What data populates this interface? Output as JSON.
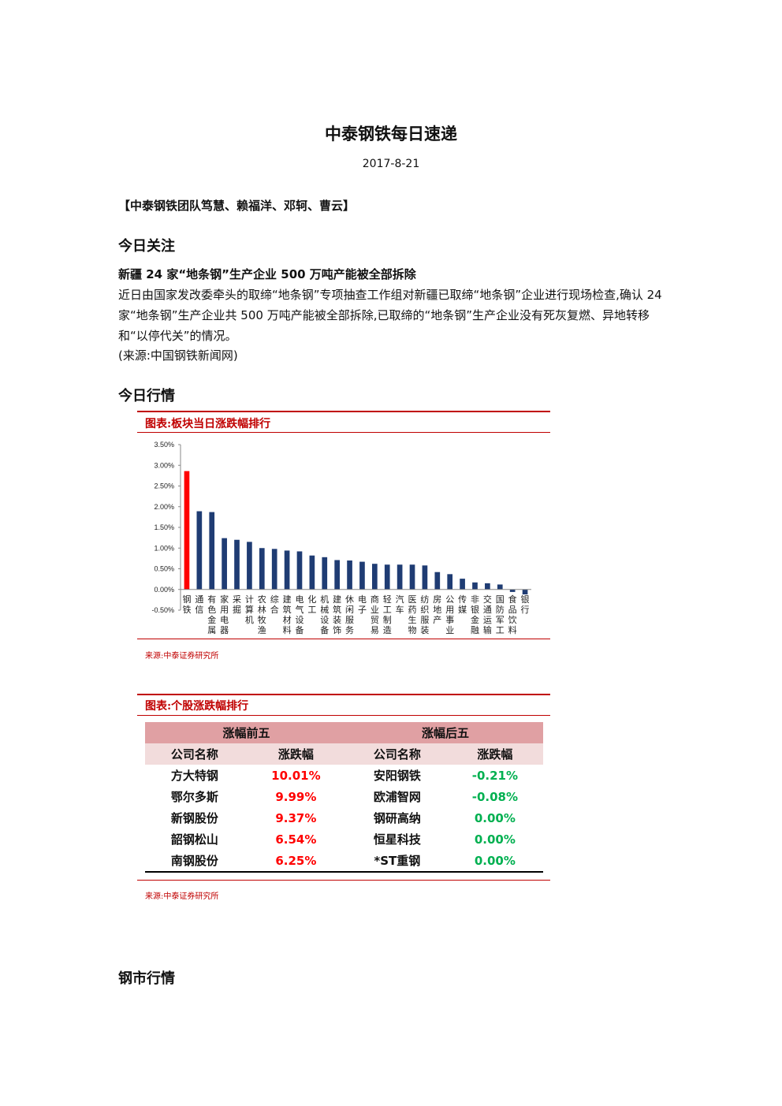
{
  "document": {
    "title": "中泰钢铁每日速递",
    "date": "2017-8-21",
    "team": "【中泰钢铁团队笃慧、赖福洋、邓轲、曹云】"
  },
  "sections": {
    "focus": "今日关注",
    "market": "今日行情",
    "steel_market": "钢市行情"
  },
  "news": {
    "headline": "新疆 24 家“地条钢”生产企业 500 万吨产能被全部拆除",
    "body": "近日由国家发改委牵头的取缔“地条钢”专项抽查工作组对新疆已取缔“地条钢”企业进行现场检查,确认 24 家“地条钢”生产企业共 500 万吨产能被全部拆除,已取缔的“地条钢”生产企业没有死灰复燃、异地转移和“以停代关”的情况。",
    "source": "(来源:中国钢铁新闻网)"
  },
  "figure1": {
    "caption": "图表:板块当日涨跌幅排行",
    "source": "来源:中泰证券研究所"
  },
  "figure2": {
    "caption": "图表:个股涨跌幅排行",
    "source": "来源:中泰证券研究所",
    "group_top": "涨幅前五",
    "group_bottom": "涨幅后五",
    "col_company": "公司名称",
    "col_change": "涨跌幅",
    "top": [
      {
        "name": "方大特钢",
        "change": "10.01%"
      },
      {
        "name": "鄂尔多斯",
        "change": "9.99%"
      },
      {
        "name": "新钢股份",
        "change": "9.37%"
      },
      {
        "name": "韶钢松山",
        "change": "6.54%"
      },
      {
        "name": "南钢股份",
        "change": "6.25%"
      }
    ],
    "bottom": [
      {
        "name": "安阳钢铁",
        "change": "-0.21%"
      },
      {
        "name": "欧浦智网",
        "change": "-0.08%"
      },
      {
        "name": "钢研高纳",
        "change": "0.00%"
      },
      {
        "name": "恒星科技",
        "change": "0.00%"
      },
      {
        "name": "*ST重钢",
        "change": "0.00%"
      }
    ],
    "colors": {
      "up": "#ff0000",
      "down": "#00b050"
    }
  },
  "chart_data": {
    "type": "bar",
    "title": "",
    "xlabel": "",
    "ylabel": "",
    "ylim": [
      -0.5,
      3.5
    ],
    "yticks": [
      "3.50%",
      "3.00%",
      "2.50%",
      "2.00%",
      "1.50%",
      "1.00%",
      "0.50%",
      "0.00%",
      "-0.50%"
    ],
    "categories": [
      "钢铁",
      "通信",
      "有色金属",
      "家用电器",
      "采掘",
      "计算机",
      "农林牧渔",
      "综合",
      "建筑材料",
      "电气设备",
      "化工",
      "机械设备",
      "建筑装饰",
      "休闲服务",
      "电子",
      "商业贸易",
      "轻工制造",
      "汽车",
      "医药生物",
      "纺织服装",
      "房地产",
      "公用事业",
      "传媒",
      "非银金融",
      "交通运输",
      "国防军工",
      "食品饮料",
      "银行"
    ],
    "values": [
      2.86,
      1.89,
      1.87,
      1.24,
      1.2,
      1.15,
      1.0,
      0.98,
      0.94,
      0.92,
      0.82,
      0.78,
      0.71,
      0.7,
      0.67,
      0.62,
      0.6,
      0.6,
      0.6,
      0.58,
      0.42,
      0.37,
      0.26,
      0.17,
      0.15,
      0.12,
      -0.06,
      -0.12
    ],
    "grid": false,
    "colors": {
      "highlight": "#ff0000",
      "default": "#1f3c73"
    }
  }
}
